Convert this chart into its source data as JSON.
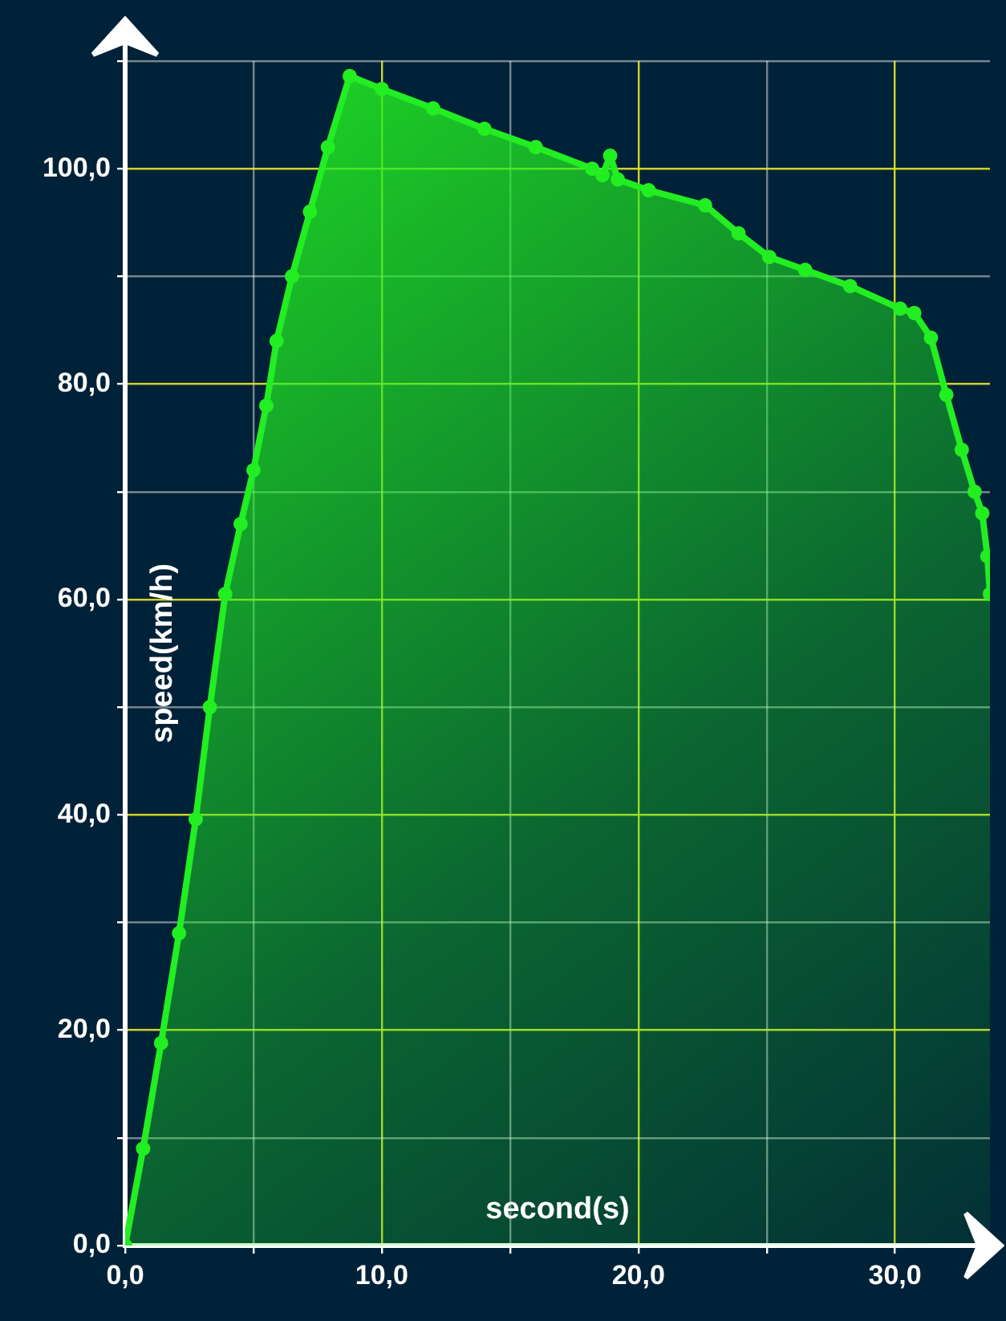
{
  "chart_data": {
    "type": "area",
    "xlabel": "second(s)",
    "ylabel": "speed(km/h)",
    "x": [
      0,
      0.7,
      1.4,
      2.1,
      2.75,
      3.3,
      3.9,
      4.5,
      5.0,
      5.5,
      5.9,
      6.5,
      7.2,
      7.9,
      8.75,
      10,
      12,
      14,
      16,
      18.2,
      18.6,
      18.9,
      19.2,
      20.4,
      22.6,
      23.9,
      25.1,
      26.5,
      28.25,
      30.2,
      30.75,
      31.4,
      32,
      32.6,
      33.1,
      33.4,
      33.6,
      33.7
    ],
    "series": [
      {
        "color": "#22ee22",
        "values": [
          0,
          9,
          18.8,
          29,
          39.6,
          50,
          60.5,
          67,
          72,
          78,
          84,
          90,
          96,
          102,
          108.6,
          107.4,
          105.6,
          103.7,
          102,
          100,
          99.4,
          101.2,
          99,
          98,
          96.6,
          94,
          91.8,
          90.6,
          89.1,
          87,
          86.6,
          84.3,
          79,
          73.9,
          70,
          68,
          64,
          60.5
        ]
      }
    ],
    "xlim": [
      0,
      33.7
    ],
    "ylim": [
      0,
      110
    ],
    "xticks": [
      {
        "value": 0,
        "label": "0,0"
      },
      {
        "value": 5,
        "label": null
      },
      {
        "value": 10,
        "label": "10,0"
      },
      {
        "value": 15,
        "label": null
      },
      {
        "value": 20,
        "label": "20,0"
      },
      {
        "value": 25,
        "label": null
      },
      {
        "value": 30,
        "label": "30,0"
      }
    ],
    "yticks": [
      {
        "value": 0,
        "label": "0,0"
      },
      {
        "value": 10,
        "label": null
      },
      {
        "value": 20,
        "label": "20,0"
      },
      {
        "value": 30,
        "label": null
      },
      {
        "value": 40,
        "label": "40,0"
      },
      {
        "value": 50,
        "label": null
      },
      {
        "value": 60,
        "label": "60,0"
      },
      {
        "value": 70,
        "label": null
      },
      {
        "value": 80,
        "label": "80,0"
      },
      {
        "value": 90,
        "label": null
      },
      {
        "value": 100,
        "label": "100,0"
      },
      {
        "value": 110,
        "label": null
      }
    ],
    "grid": true,
    "marker": "circle",
    "legend": false
  }
}
